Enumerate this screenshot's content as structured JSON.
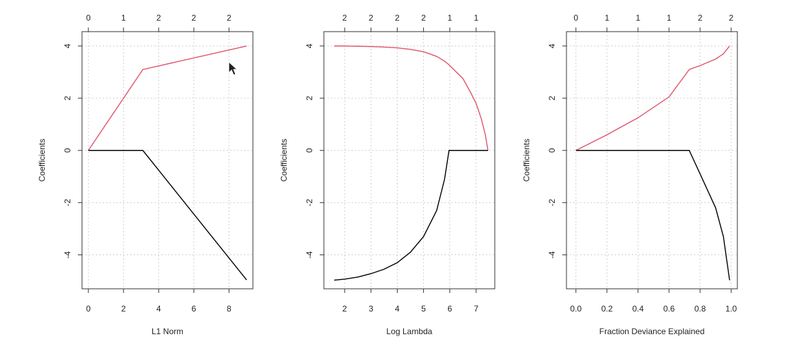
{
  "chart_data": [
    {
      "type": "line",
      "xlabel": "L1 Norm",
      "ylabel": "Coefficients",
      "x": [
        0,
        3.1,
        9
      ],
      "series": [
        {
          "color": "#df536b",
          "values": [
            0,
            3.1,
            4.0
          ]
        },
        {
          "color": "#000000",
          "values": [
            0,
            0,
            -4.96
          ]
        }
      ],
      "xlim": [
        -0.36,
        9.36
      ],
      "xticks": [
        0,
        2,
        4,
        6,
        8
      ],
      "x2ticks": [
        0,
        {
          "value": 2,
          "label": "1"
        },
        {
          "value": 4,
          "label": "2"
        },
        {
          "value": 6,
          "label": "2"
        },
        {
          "value": 8,
          "label": "2"
        }
      ],
      "ylim": [
        -5.3,
        4.55
      ],
      "yticks": [
        -4,
        -2,
        0,
        2,
        4
      ],
      "grid": true
    },
    {
      "type": "line",
      "xlabel": "Log Lambda",
      "ylabel": "Coefficients",
      "x": [
        1.6,
        2,
        2.5,
        3,
        3.5,
        4,
        4.5,
        5,
        5.5,
        5.8,
        5.97,
        6.2,
        6.5,
        6.8,
        7.0,
        7.2,
        7.35,
        7.45
      ],
      "series": [
        {
          "color": "#df536b",
          "values": [
            4.0,
            4.0,
            3.99,
            3.98,
            3.96,
            3.93,
            3.87,
            3.78,
            3.6,
            3.42,
            3.28,
            3.05,
            2.75,
            2.2,
            1.8,
            1.2,
            0.6,
            0
          ]
        },
        {
          "color": "#000000",
          "values": [
            -4.97,
            -4.93,
            -4.85,
            -4.72,
            -4.55,
            -4.3,
            -3.9,
            -3.3,
            -2.3,
            -1.1,
            0,
            0,
            0,
            0,
            0,
            0,
            0,
            0
          ]
        }
      ],
      "xlim": [
        1.21,
        7.71
      ],
      "xticks": [
        2,
        3,
        4,
        5,
        6,
        7
      ],
      "x2ticks": [
        2,
        {
          "value": 3,
          "label": "2"
        },
        {
          "value": 4,
          "label": "2"
        },
        {
          "value": 5,
          "label": "2"
        },
        {
          "value": 6,
          "label": "1"
        },
        {
          "value": 7,
          "label": "1"
        }
      ],
      "ylim": [
        -5.3,
        4.55
      ],
      "yticks": [
        -4,
        -2,
        0,
        2,
        4
      ],
      "grid": true
    },
    {
      "type": "line",
      "xlabel": "Fraction Deviance Explained",
      "ylabel": "Coefficients",
      "x": [
        0,
        0.2,
        0.4,
        0.6,
        0.73,
        0.8,
        0.9,
        0.95,
        0.99
      ],
      "series": [
        {
          "color": "#df536b",
          "values": [
            0,
            0.6,
            1.25,
            2.05,
            3.1,
            3.25,
            3.5,
            3.7,
            4.0
          ]
        },
        {
          "color": "#000000",
          "values": [
            0,
            0,
            0,
            0,
            0,
            -0.9,
            -2.2,
            -3.3,
            -4.97
          ]
        }
      ],
      "xlim": [
        -0.061,
        1.04
      ],
      "xticks": [
        {
          "value": 0,
          "label": "0.0"
        },
        0.2,
        0.4,
        0.6,
        0.8,
        {
          "value": 1,
          "label": "1.0"
        }
      ],
      "x2ticks": [
        0,
        {
          "value": 0.2,
          "label": "1"
        },
        {
          "value": 0.4,
          "label": "1"
        },
        {
          "value": 0.6,
          "label": "1"
        },
        {
          "value": 0.8,
          "label": "2"
        },
        {
          "value": 1,
          "label": "2"
        }
      ],
      "ylim": [
        -5.3,
        4.55
      ],
      "yticks": [
        -4,
        -2,
        0,
        2,
        4
      ],
      "grid": true
    }
  ]
}
